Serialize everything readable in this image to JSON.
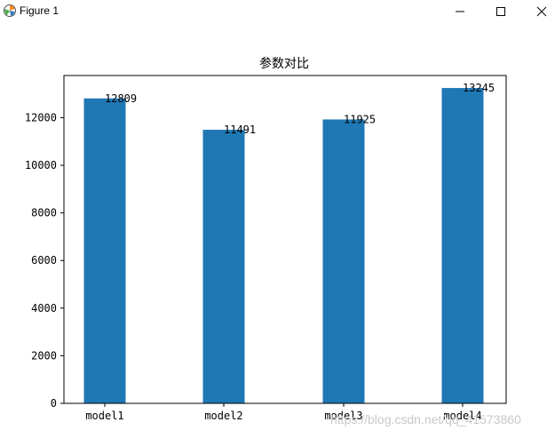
{
  "window": {
    "title": "Figure 1"
  },
  "icons": {
    "app": "matplotlib-figure-icon",
    "minimize": "minimize-icon",
    "maximize": "maximize-icon",
    "close": "close-icon"
  },
  "colors": {
    "bar": "#1f77b4"
  },
  "chart_data": {
    "type": "bar",
    "title": "参数对比",
    "xlabel": "",
    "ylabel": "",
    "categories": [
      "model1",
      "model2",
      "model3",
      "model4"
    ],
    "values": [
      12809,
      11491,
      11925,
      13245
    ],
    "data_labels": [
      "12809",
      "11491",
      "11925",
      "13245"
    ],
    "ylim": [
      0,
      13770
    ],
    "yticks": [
      0,
      2000,
      4000,
      6000,
      8000,
      10000,
      12000
    ],
    "ytick_labels": [
      "0",
      "2000",
      "4000",
      "6000",
      "8000",
      "10000",
      "12000"
    ],
    "grid": false,
    "legend": "none"
  },
  "watermark": "https://blog.csdn.net/qq_41573860"
}
